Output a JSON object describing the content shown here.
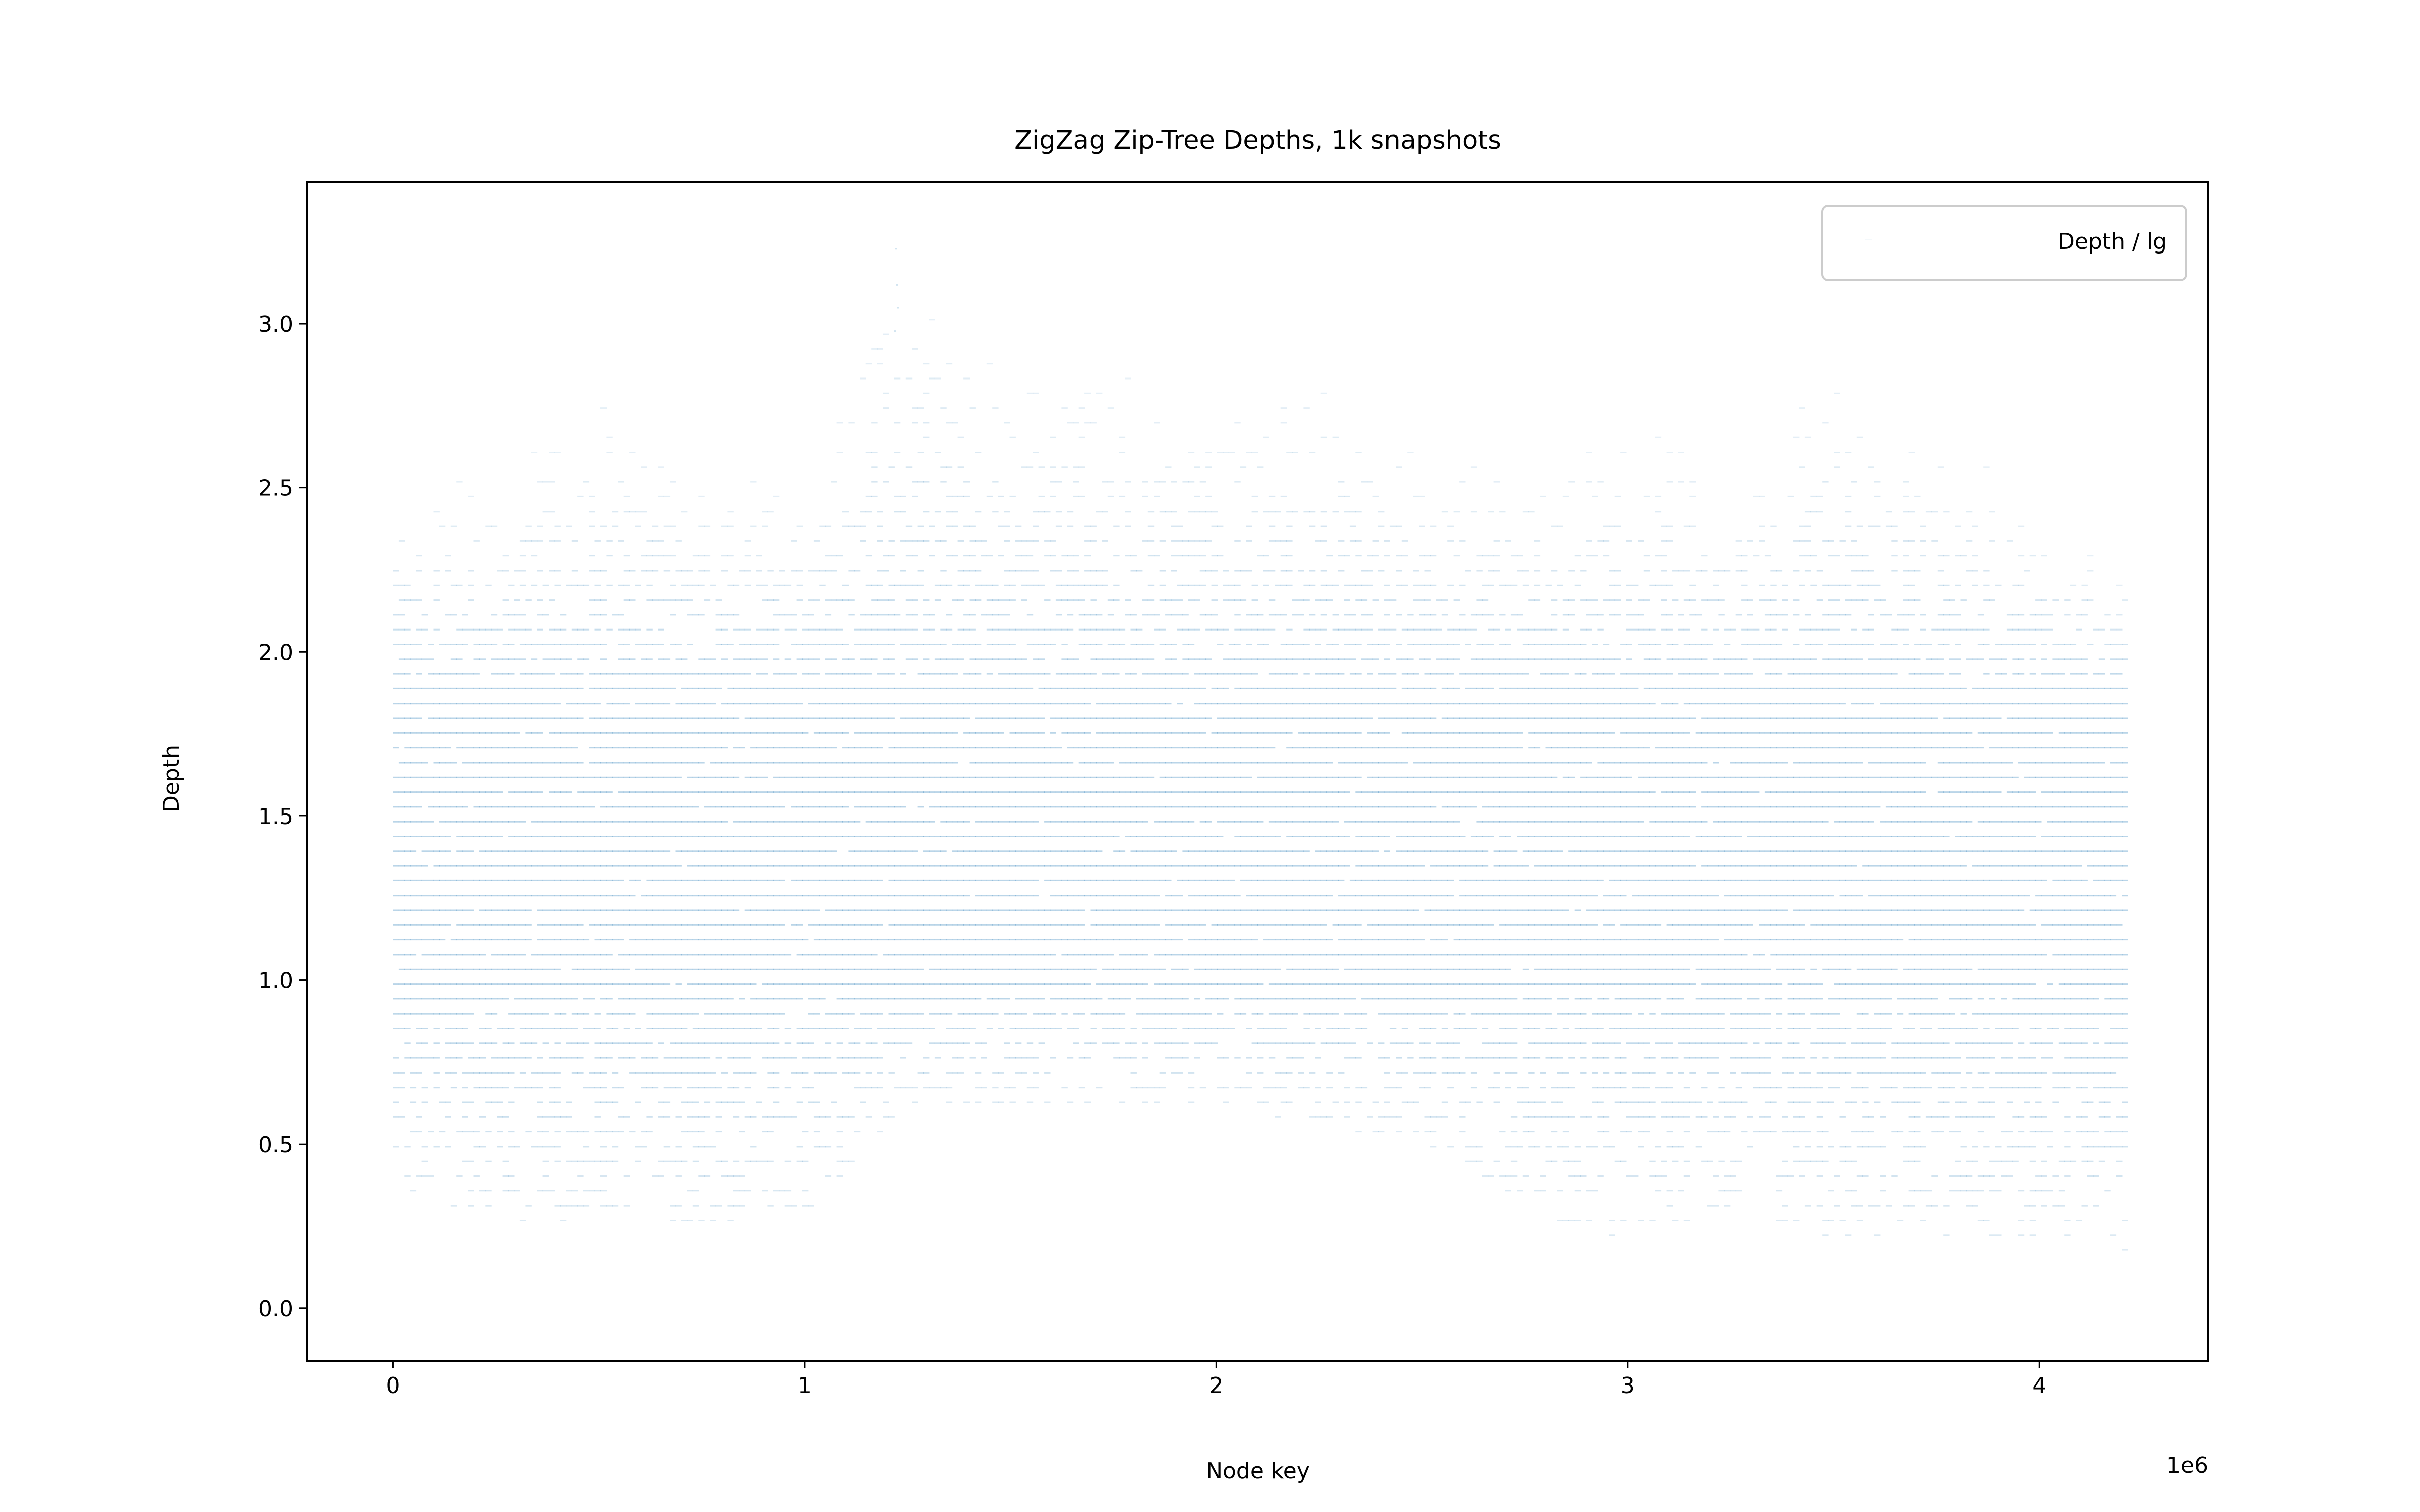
{
  "chart_data": {
    "type": "scatter",
    "title": "ZigZag Zip-Tree Depths, 1k snapshots",
    "xlabel": "Node key",
    "ylabel": "Depth",
    "x_offset_label": "1e6",
    "xlim": [
      -210000,
      4410000
    ],
    "ylim": [
      -0.16,
      3.43
    ],
    "xticks": [
      {
        "value": 0,
        "label": "0"
      },
      {
        "value": 1000000,
        "label": "1"
      },
      {
        "value": 2000000,
        "label": "2"
      },
      {
        "value": 3000000,
        "label": "3"
      },
      {
        "value": 4000000,
        "label": "4"
      }
    ],
    "yticks": [
      {
        "value": 0.0,
        "label": "0.0"
      },
      {
        "value": 0.5,
        "label": "0.5"
      },
      {
        "value": 1.0,
        "label": "1.0"
      },
      {
        "value": 1.5,
        "label": "1.5"
      },
      {
        "value": 2.0,
        "label": "2.0"
      },
      {
        "value": 2.5,
        "label": "2.5"
      },
      {
        "value": 3.0,
        "label": "3.0"
      }
    ],
    "legend": {
      "position": "upper right",
      "entries": [
        "Depth / lg"
      ]
    },
    "grid": false,
    "series": [
      {
        "name": "Depth / lg",
        "color": "#1f77b4",
        "x_range": [
          0,
          4200000
        ],
        "summary": "dense bands of points; dense region spans depth ~0.95 to ~1.9 across all keys, sparse points extend to ~0.2 below and ~3.0 above (max ~3.23 near key 1.22e6)",
        "envelope": [
          {
            "x": 0,
            "min": 0.38,
            "max": 2.58
          },
          {
            "x": 250000,
            "min": 0.22,
            "max": 2.55
          },
          {
            "x": 500000,
            "min": 0.3,
            "max": 2.8
          },
          {
            "x": 750000,
            "min": 0.25,
            "max": 2.55
          },
          {
            "x": 1000000,
            "min": 0.28,
            "max": 2.6
          },
          {
            "x": 1220000,
            "min": 0.6,
            "max": 3.23
          },
          {
            "x": 1500000,
            "min": 0.62,
            "max": 2.95
          },
          {
            "x": 1750000,
            "min": 0.62,
            "max": 2.85
          },
          {
            "x": 2000000,
            "min": 0.62,
            "max": 2.8
          },
          {
            "x": 2280000,
            "min": 0.55,
            "max": 2.92
          },
          {
            "x": 2500000,
            "min": 0.5,
            "max": 2.65
          },
          {
            "x": 2750000,
            "min": 0.3,
            "max": 2.6
          },
          {
            "x": 3000000,
            "min": 0.2,
            "max": 2.75
          },
          {
            "x": 3250000,
            "min": 0.3,
            "max": 2.55
          },
          {
            "x": 3500000,
            "min": 0.2,
            "max": 2.92
          },
          {
            "x": 3750000,
            "min": 0.18,
            "max": 2.7
          },
          {
            "x": 4000000,
            "min": 0.2,
            "max": 2.45
          },
          {
            "x": 4200000,
            "min": 0.18,
            "max": 2.25
          }
        ]
      }
    ]
  }
}
